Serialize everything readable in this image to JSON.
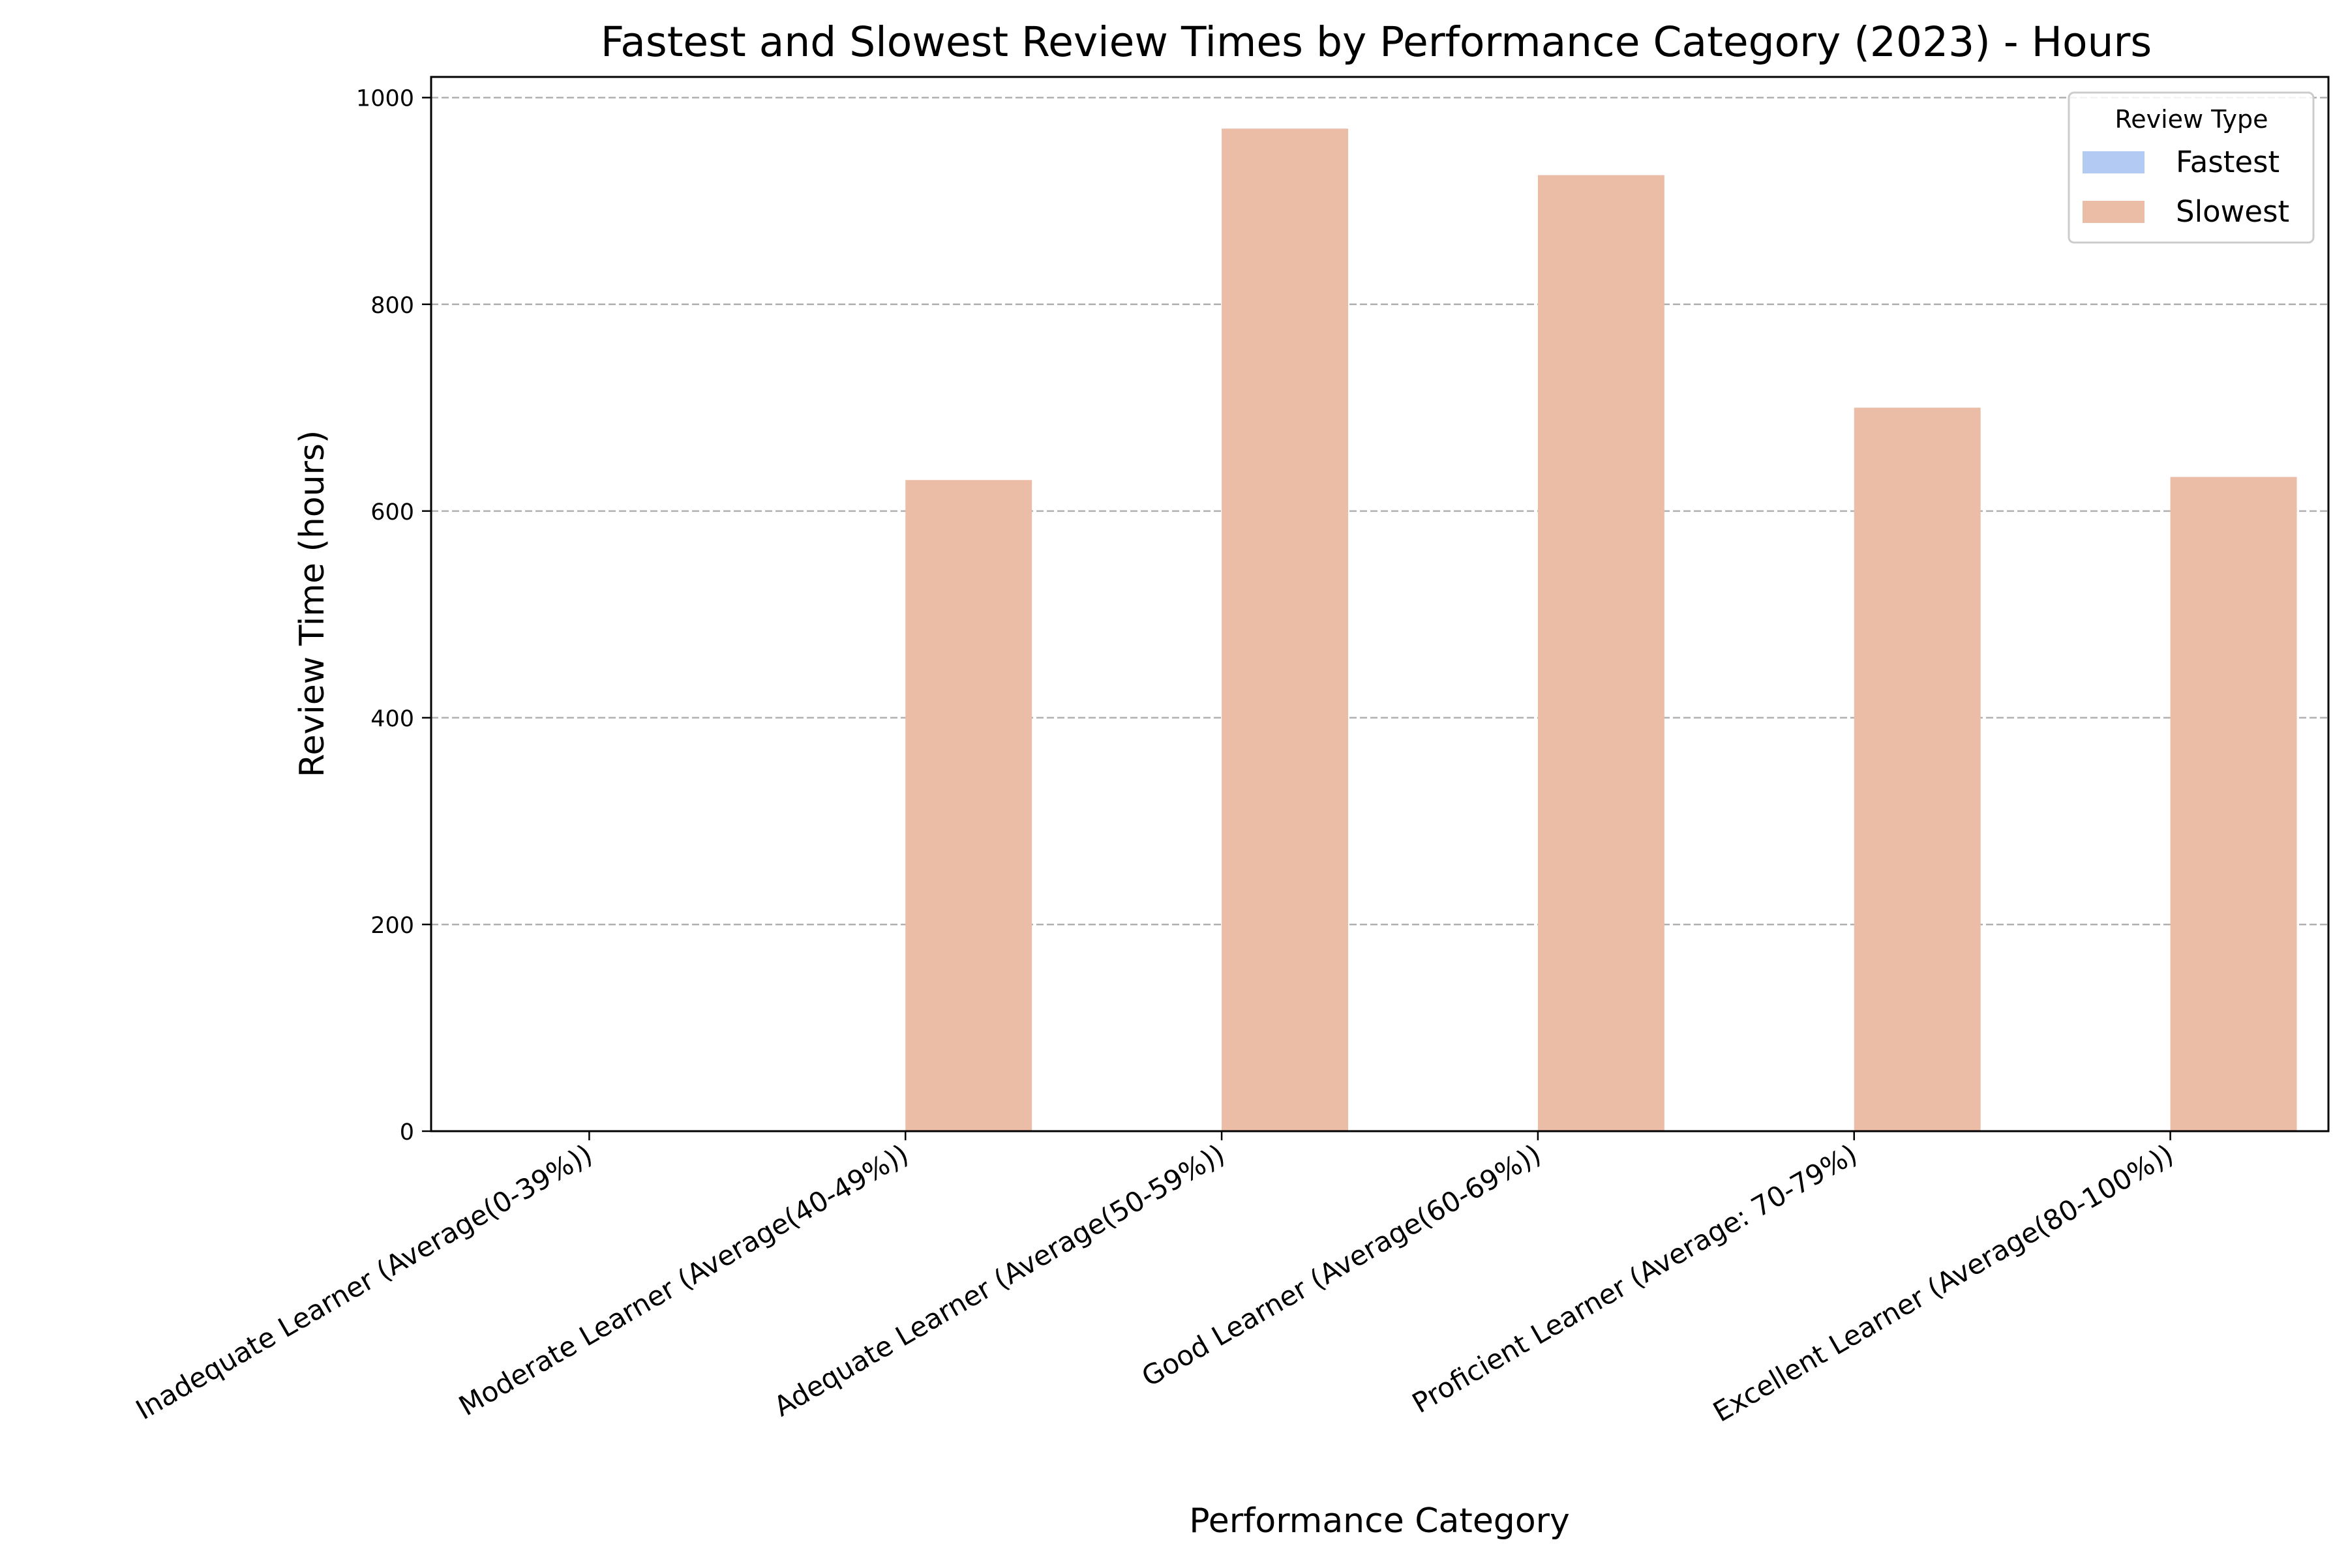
{
  "chart_data": {
    "type": "bar",
    "title": "Fastest and Slowest Review Times by Performance Category (2023) - Hours",
    "xlabel": "Performance Category",
    "ylabel": "Review Time (hours)",
    "categories": [
      "Inadequate Learner (Average(0-39%))",
      "Moderate Learner (Average(40-49%))",
      "Adequate Learner (Average(50-59%))",
      "Good Learner (Average(60-69%))",
      "Proficient Learner (Average: 70-79%)",
      "Excellent Learner (Average(80-100%))"
    ],
    "series": [
      {
        "name": "Fastest",
        "color": "#b3cbf2",
        "values": [
          0,
          0,
          0,
          0,
          0,
          0
        ]
      },
      {
        "name": "Slowest",
        "color": "#ebbca6",
        "values": [
          0,
          630,
          970,
          925,
          700,
          633
        ]
      }
    ],
    "ylim": [
      0,
      1020
    ],
    "yticks": [
      0,
      200,
      400,
      600,
      800,
      1000
    ],
    "grid": "y-dashed",
    "legend": {
      "title": "Review Type",
      "placement": "top-right"
    }
  }
}
